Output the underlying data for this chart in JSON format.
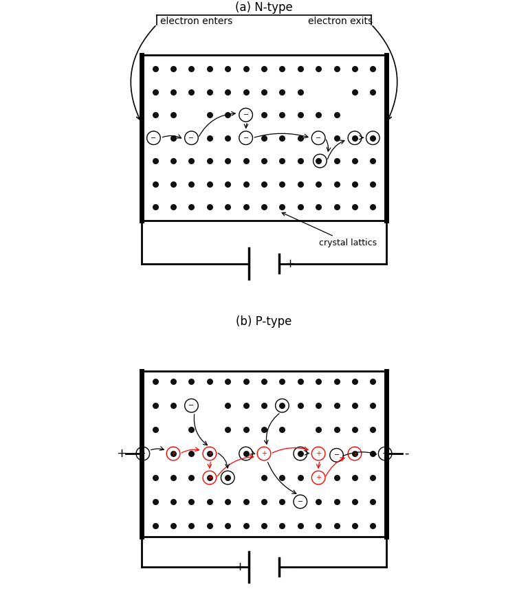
{
  "title_a": "(a) N-type",
  "title_b": "(b) P-type",
  "bg_color": "#ffffff",
  "dot_color": "#111111",
  "label_electron_enters": "electron enters",
  "label_electron_exits": "electron exits",
  "label_crystal_lattics": "crystal lattics",
  "battery_neg_a": "-",
  "battery_pos_a": "+",
  "battery_pos_b": "+",
  "battery_neg_b": "-",
  "left_label_b": "+",
  "right_label_b": "-"
}
